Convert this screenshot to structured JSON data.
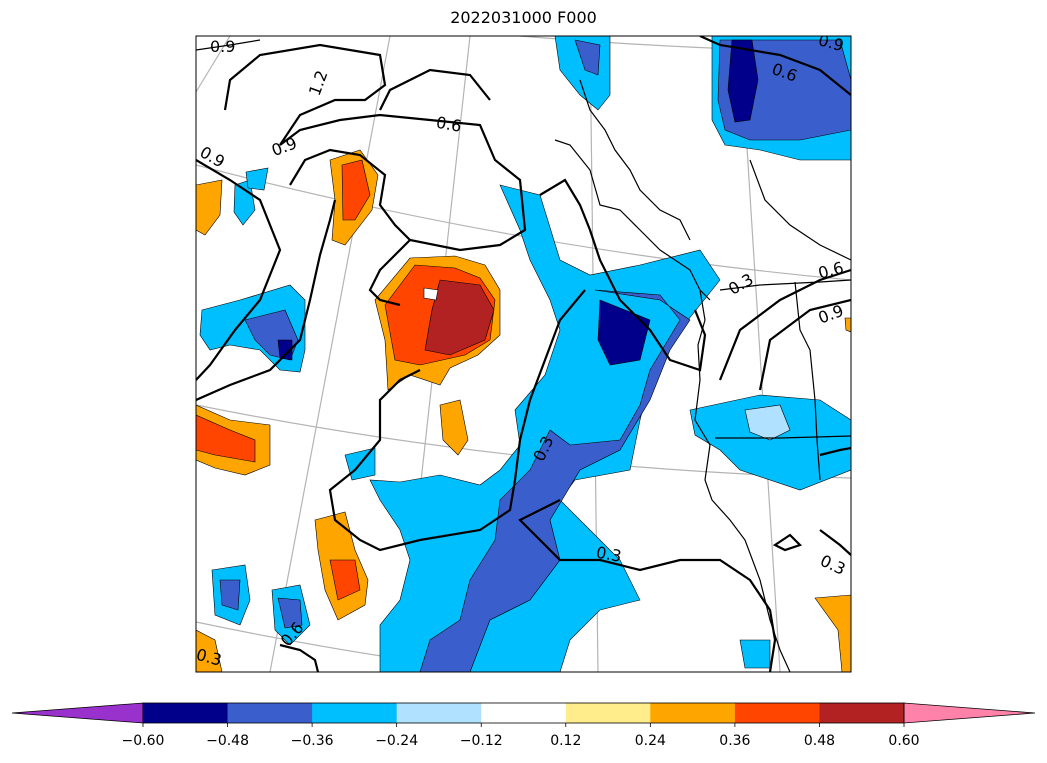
{
  "chart_data": {
    "type": "heatmap",
    "title": "2022031000 F000",
    "colorbar": {
      "orientation": "horizontal",
      "extend": "both",
      "levels": [
        -0.6,
        -0.48,
        -0.36,
        -0.24,
        -0.12,
        0.12,
        0.24,
        0.36,
        0.48,
        0.6
      ],
      "tick_labels": [
        "−0.60",
        "−0.48",
        "−0.36",
        "−0.24",
        "−0.12",
        "0.12",
        "0.24",
        "0.36",
        "0.48",
        "0.60"
      ],
      "colors": [
        "#9932cc",
        "#00008b",
        "#3a5fcd",
        "#00bfff",
        "#b0e2ff",
        "#ffffff",
        "#ffec8b",
        "#ffa500",
        "#ff4500",
        "#b22222",
        "#ff82ab"
      ]
    },
    "contour_line_labels": [
      "0.9",
      "1.2",
      "0.9",
      "0.6",
      "0.9",
      "0.6",
      "0.9",
      "0.3",
      "0.6",
      "0.9",
      "0.3",
      "0.3",
      "0.3",
      "0.6",
      "0.3"
    ],
    "basemap": "Pacific Northwest coastline with country and state borders, graticule lines"
  }
}
